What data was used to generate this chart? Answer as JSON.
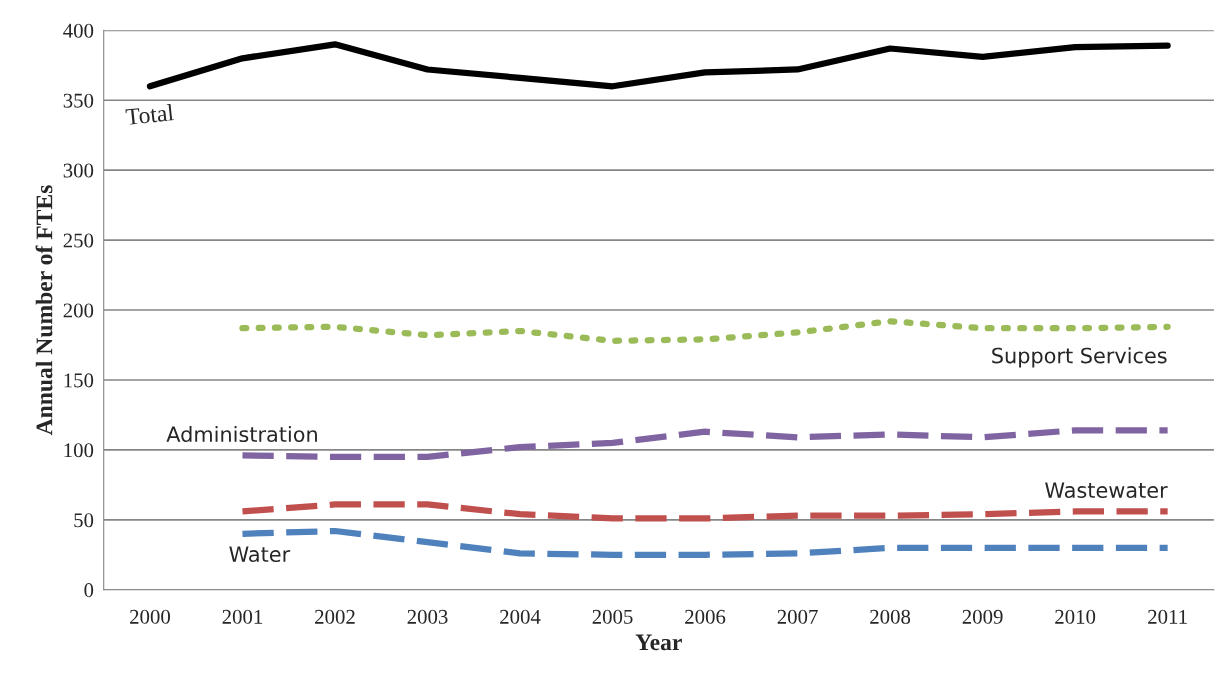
{
  "chart_data": {
    "type": "line",
    "xlabel": "Year",
    "ylabel": "Annual Number of FTEs",
    "categories": [
      "2000",
      "2001",
      "2002",
      "2003",
      "2004",
      "2005",
      "2006",
      "2007",
      "2008",
      "2009",
      "2010",
      "2011"
    ],
    "series": [
      {
        "name": "Total",
        "color": "#000000",
        "line_style": "solid",
        "values": [
          360,
          380,
          390,
          372,
          366,
          360,
          370,
          372,
          387,
          381,
          388,
          389
        ]
      },
      {
        "name": "Support Services",
        "color": "#9bbb59",
        "line_style": "dotted",
        "values": [
          null,
          187,
          188,
          182,
          185,
          178,
          179,
          184,
          192,
          187,
          187,
          188
        ]
      },
      {
        "name": "Administration",
        "color": "#8064a2",
        "line_style": "dashed",
        "values": [
          null,
          96,
          95,
          95,
          102,
          105,
          113,
          109,
          111,
          109,
          114,
          114
        ]
      },
      {
        "name": "Wastewater",
        "color": "#c0504d",
        "line_style": "dashed",
        "values": [
          null,
          56,
          61,
          61,
          54,
          51,
          51,
          53,
          53,
          54,
          56,
          56
        ]
      },
      {
        "name": "Water",
        "color": "#4f81bd",
        "line_style": "dashed",
        "values": [
          null,
          40,
          42,
          34,
          26,
          25,
          25,
          26,
          30,
          30,
          30,
          30
        ]
      }
    ],
    "ylim": [
      0,
      400
    ],
    "yticks": [
      0,
      50,
      100,
      150,
      200,
      250,
      300,
      350,
      400
    ],
    "grid": "y",
    "legend": false,
    "marker": "none"
  }
}
